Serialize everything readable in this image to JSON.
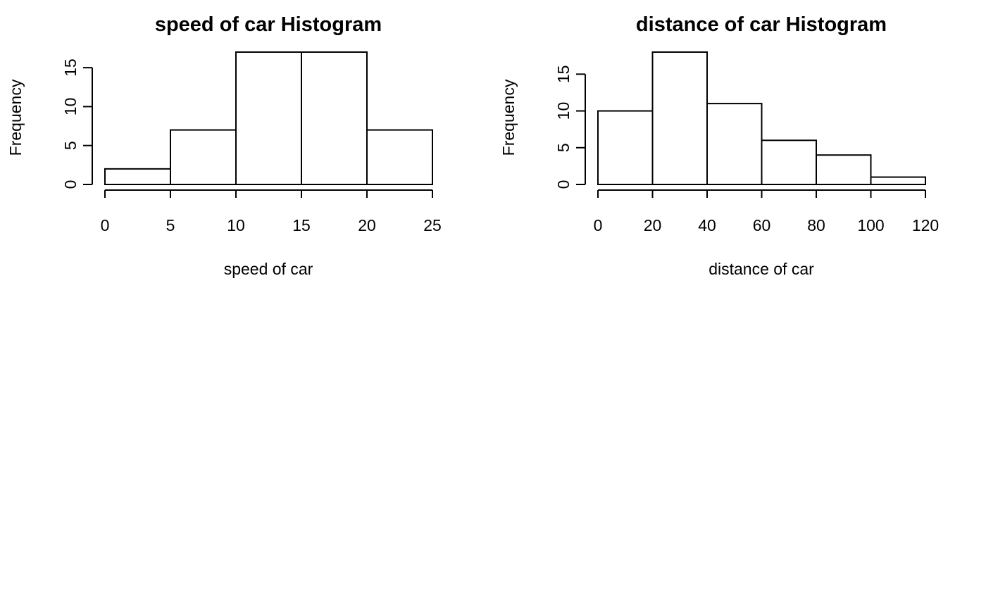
{
  "chart_data": [
    {
      "type": "bar",
      "title": "speed of car Histogram",
      "xlabel": "speed of car",
      "ylabel": "Frequency",
      "bins": [
        [
          0,
          5
        ],
        [
          5,
          10
        ],
        [
          10,
          15
        ],
        [
          15,
          20
        ],
        [
          20,
          25
        ]
      ],
      "values": [
        2,
        7,
        17,
        17,
        7
      ],
      "xlim": [
        0,
        25
      ],
      "ylim": [
        0,
        17
      ],
      "xticks": [
        0,
        5,
        10,
        15,
        20,
        25
      ],
      "yticks": [
        0,
        5,
        10,
        15
      ],
      "grid": false
    },
    {
      "type": "bar",
      "title": "distance of car Histogram",
      "xlabel": "distance of car",
      "ylabel": "Frequency",
      "bins": [
        [
          0,
          20
        ],
        [
          20,
          40
        ],
        [
          40,
          60
        ],
        [
          60,
          80
        ],
        [
          80,
          100
        ],
        [
          100,
          120
        ]
      ],
      "values": [
        10,
        18,
        11,
        6,
        4,
        1
      ],
      "xlim": [
        0,
        120
      ],
      "ylim": [
        0,
        18
      ],
      "xticks": [
        0,
        20,
        40,
        60,
        80,
        100,
        120
      ],
      "yticks": [
        0,
        5,
        10,
        15
      ],
      "grid": false
    }
  ]
}
